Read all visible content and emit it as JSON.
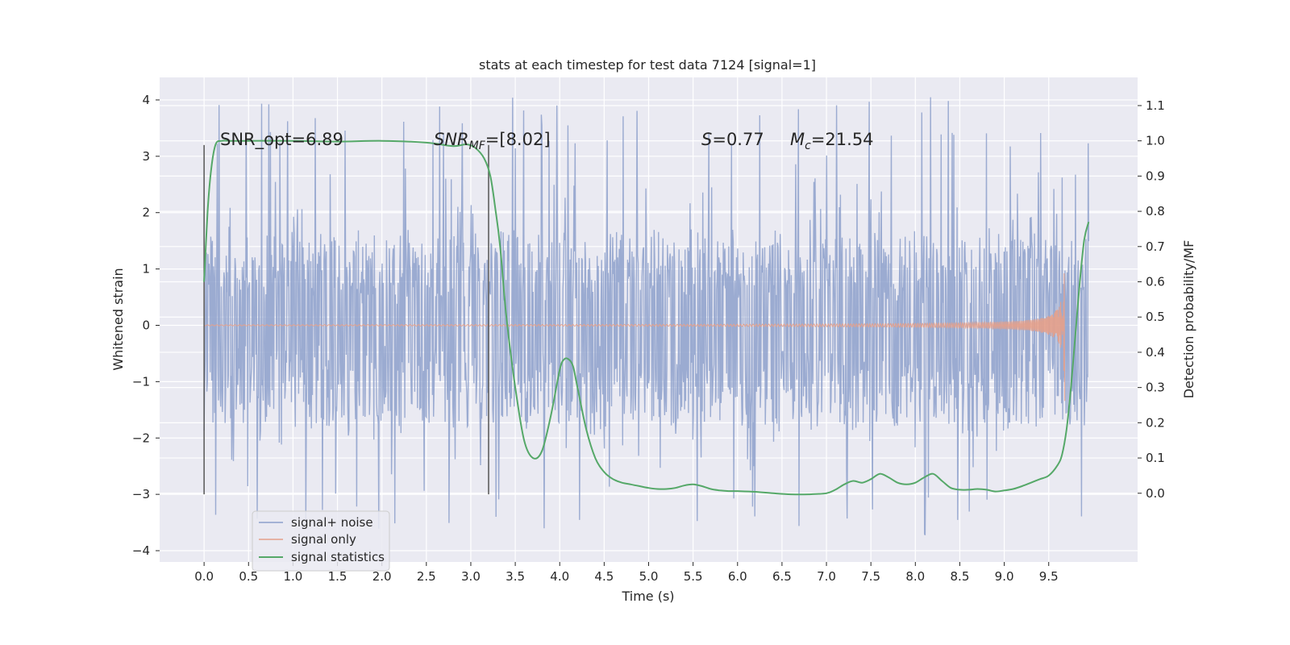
{
  "chart_data": {
    "type": "line",
    "title": "stats at each timestep for test data 7124 [signal=1]",
    "xlabel": "Time (s)",
    "ylabel": "Whitened strain",
    "ylabel_right": "Detection probability/MF",
    "xlim": [
      -0.5,
      10.5
    ],
    "ylim": [
      -4.2,
      4.4
    ],
    "ylim_right": [
      -0.195,
      1.18
    ],
    "x_ticks": [
      "0.0",
      "0.5",
      "1.0",
      "1.5",
      "2.0",
      "2.5",
      "3.0",
      "3.5",
      "4.0",
      "4.5",
      "5.0",
      "5.5",
      "6.0",
      "6.5",
      "7.0",
      "7.5",
      "8.0",
      "8.5",
      "9.0",
      "9.5"
    ],
    "y_ticks": [
      "4",
      "3",
      "2",
      "1",
      "0",
      "−1",
      "−2",
      "−3",
      "−4"
    ],
    "y_ticks_right": [
      "1.1",
      "1.0",
      "0.9",
      "0.8",
      "0.7",
      "0.6",
      "0.5",
      "0.4",
      "0.3",
      "0.2",
      "0.1",
      "0.0"
    ],
    "annotations": {
      "snr_opt": "SNR_opt=6.89",
      "snr_mf_base": "SNR",
      "snr_mf_sub": "MF",
      "snr_mf_rest": "=[8.02]",
      "s_sym": "S",
      "s_rest": "=0.77",
      "mc_base": "M",
      "mc_sub": "c",
      "mc_rest": "=21.54"
    },
    "vlines": [
      {
        "x": 0.0,
        "y_from": -3.0,
        "y_to": 3.2
      },
      {
        "x": 3.2,
        "y_from": -3.0,
        "y_to": 3.2
      }
    ],
    "legend_placement": "lower-left",
    "grid": true,
    "series": [
      {
        "name": "signal+ noise",
        "color": "#8da0cb",
        "x_range": [
          0.0,
          9.95
        ],
        "envelope_low": -1.6,
        "envelope_high": 1.4,
        "spike_max": 4.05,
        "spike_min": -3.8
      },
      {
        "name": "signal only",
        "color": "#e5a08a",
        "x_range": [
          0.0,
          9.68
        ],
        "peak_amplitude": 1.5,
        "merger_time": 9.68
      },
      {
        "name": "signal statistics",
        "color": "#55a868",
        "axis": "right",
        "x": [
          0.0,
          0.04,
          0.08,
          0.13,
          0.2,
          0.3,
          0.5,
          1.0,
          1.5,
          2.0,
          2.5,
          2.8,
          2.95,
          3.05,
          3.15,
          3.22,
          3.28,
          3.33,
          3.4,
          3.5,
          3.6,
          3.7,
          3.8,
          3.9,
          4.0,
          4.05,
          4.1,
          4.15,
          4.2,
          4.3,
          4.4,
          4.5,
          4.6,
          4.7,
          4.8,
          4.9,
          5.0,
          5.1,
          5.2,
          5.3,
          5.4,
          5.5,
          5.6,
          5.7,
          5.8,
          5.9,
          6.0,
          6.2,
          6.4,
          6.6,
          6.8,
          7.0,
          7.1,
          7.2,
          7.3,
          7.4,
          7.5,
          7.6,
          7.7,
          7.8,
          7.9,
          8.0,
          8.1,
          8.2,
          8.3,
          8.4,
          8.5,
          8.6,
          8.7,
          8.8,
          8.9,
          9.0,
          9.1,
          9.2,
          9.3,
          9.4,
          9.5,
          9.6,
          9.65,
          9.7,
          9.75,
          9.8,
          9.85,
          9.9,
          9.95
        ],
        "y": [
          0.6,
          0.8,
          0.92,
          0.99,
          1.0,
          1.0,
          1.0,
          1.0,
          0.998,
          1.0,
          0.995,
          0.985,
          0.99,
          0.98,
          0.95,
          0.9,
          0.8,
          0.7,
          0.5,
          0.3,
          0.15,
          0.1,
          0.12,
          0.22,
          0.35,
          0.38,
          0.38,
          0.36,
          0.3,
          0.18,
          0.1,
          0.06,
          0.04,
          0.03,
          0.025,
          0.02,
          0.015,
          0.012,
          0.012,
          0.015,
          0.022,
          0.025,
          0.02,
          0.012,
          0.008,
          0.006,
          0.006,
          0.004,
          0.0,
          -0.003,
          -0.003,
          0.0,
          0.01,
          0.025,
          0.035,
          0.03,
          0.04,
          0.055,
          0.045,
          0.03,
          0.025,
          0.03,
          0.045,
          0.055,
          0.035,
          0.015,
          0.01,
          0.01,
          0.012,
          0.01,
          0.005,
          0.008,
          0.012,
          0.02,
          0.03,
          0.04,
          0.05,
          0.08,
          0.11,
          0.18,
          0.3,
          0.45,
          0.6,
          0.72,
          0.77
        ]
      }
    ]
  }
}
